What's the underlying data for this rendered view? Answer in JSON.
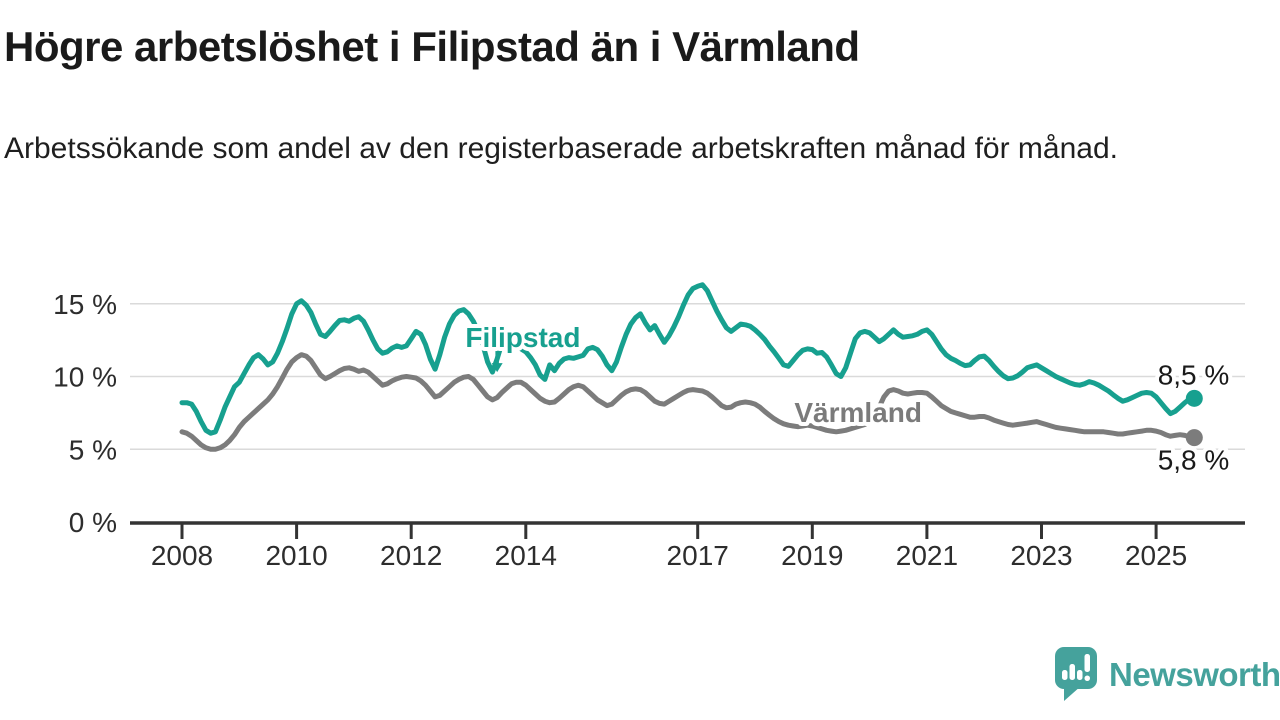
{
  "title": "Högre arbetslöshet i Filipstad än i Värmland",
  "subtitle": "Arbetssökande som andel av den registerbaserade arbetskraften månad för månad.",
  "colors": {
    "filipstad": "#17a08f",
    "varmland": "#7c7c7c",
    "grid": "#dadada",
    "axis": "#333333",
    "axis_text": "#2d2d2d",
    "label_text": "#1a1a1a",
    "logo": "#45a29c",
    "background": "#ffffff"
  },
  "chart_data": {
    "type": "line",
    "x_axis": {
      "start": "2008-01",
      "end": "2025-09",
      "interval": "monthly"
    },
    "x_ticks": [
      {
        "year": 2008,
        "label": "2008"
      },
      {
        "year": 2010,
        "label": "2010"
      },
      {
        "year": 2012,
        "label": "2012"
      },
      {
        "year": 2014,
        "label": "2014"
      },
      {
        "year": 2017,
        "label": "2017"
      },
      {
        "year": 2019,
        "label": "2019"
      },
      {
        "year": 2021,
        "label": "2021"
      },
      {
        "year": 2023,
        "label": "2023"
      },
      {
        "year": 2025,
        "label": "2025"
      }
    ],
    "y_ticks": [
      {
        "value": 0,
        "label": "0 %"
      },
      {
        "value": 5,
        "label": "5 %"
      },
      {
        "value": 10,
        "label": "10 %"
      },
      {
        "value": 15,
        "label": "15 %"
      }
    ],
    "ylim": [
      0,
      17.5
    ],
    "grid": true,
    "series": [
      {
        "name": "Värmland",
        "color": "#7c7c7c",
        "end_label": "5,8 %",
        "values": [
          6.2,
          6.1,
          5.9,
          5.6,
          5.3,
          5.1,
          5.0,
          5.0,
          5.1,
          5.3,
          5.6,
          6.0,
          6.5,
          6.9,
          7.2,
          7.5,
          7.8,
          8.1,
          8.4,
          8.8,
          9.3,
          9.9,
          10.5,
          11.0,
          11.3,
          11.5,
          11.4,
          11.1,
          10.6,
          10.1,
          9.85,
          10.0,
          10.2,
          10.4,
          10.55,
          10.6,
          10.5,
          10.35,
          10.45,
          10.3,
          10.0,
          9.7,
          9.4,
          9.5,
          9.7,
          9.85,
          9.95,
          10.0,
          9.95,
          9.9,
          9.7,
          9.4,
          9.0,
          8.6,
          8.7,
          9.0,
          9.3,
          9.6,
          9.8,
          9.95,
          10.0,
          9.8,
          9.4,
          9.0,
          8.6,
          8.4,
          8.55,
          8.9,
          9.2,
          9.5,
          9.6,
          9.6,
          9.4,
          9.1,
          8.8,
          8.5,
          8.3,
          8.2,
          8.25,
          8.5,
          8.8,
          9.1,
          9.3,
          9.4,
          9.3,
          9.0,
          8.7,
          8.4,
          8.2,
          8.0,
          8.1,
          8.4,
          8.7,
          8.95,
          9.1,
          9.15,
          9.1,
          8.9,
          8.6,
          8.3,
          8.15,
          8.1,
          8.3,
          8.5,
          8.7,
          8.9,
          9.05,
          9.1,
          9.05,
          9.0,
          8.85,
          8.6,
          8.3,
          8.0,
          7.85,
          7.9,
          8.1,
          8.2,
          8.25,
          8.2,
          8.1,
          7.9,
          7.6,
          7.35,
          7.1,
          6.9,
          6.75,
          6.65,
          6.6,
          6.55,
          6.6,
          6.65,
          6.6,
          6.5,
          6.4,
          6.3,
          6.25,
          6.2,
          6.25,
          6.3,
          6.4,
          6.5,
          6.6,
          6.7,
          6.9,
          7.2,
          7.9,
          8.6,
          9.0,
          9.1,
          9.0,
          8.85,
          8.8,
          8.85,
          8.9,
          8.9,
          8.85,
          8.6,
          8.3,
          8.0,
          7.8,
          7.6,
          7.5,
          7.4,
          7.3,
          7.2,
          7.2,
          7.25,
          7.25,
          7.15,
          7.0,
          6.9,
          6.8,
          6.7,
          6.65,
          6.7,
          6.75,
          6.8,
          6.85,
          6.9,
          6.8,
          6.7,
          6.6,
          6.5,
          6.45,
          6.4,
          6.35,
          6.3,
          6.25,
          6.2,
          6.2,
          6.2,
          6.2,
          6.2,
          6.15,
          6.1,
          6.05,
          6.05,
          6.1,
          6.15,
          6.2,
          6.25,
          6.3,
          6.3,
          6.25,
          6.15,
          6.0,
          5.9,
          5.95,
          6.0,
          5.95,
          5.85,
          5.8
        ]
      },
      {
        "name": "Filipstad",
        "color": "#17a08f",
        "end_label": "8,5 %",
        "values": [
          8.2,
          8.2,
          8.1,
          7.6,
          6.9,
          6.3,
          6.1,
          6.2,
          7.0,
          7.9,
          8.6,
          9.3,
          9.6,
          10.2,
          10.8,
          11.3,
          11.5,
          11.2,
          10.8,
          11.0,
          11.6,
          12.4,
          13.3,
          14.3,
          15.0,
          15.2,
          14.9,
          14.4,
          13.6,
          12.9,
          12.75,
          13.1,
          13.5,
          13.85,
          13.9,
          13.8,
          14.0,
          14.1,
          13.8,
          13.2,
          12.5,
          11.9,
          11.6,
          11.7,
          11.95,
          12.1,
          12.0,
          12.1,
          12.6,
          13.1,
          12.9,
          12.2,
          11.2,
          10.5,
          11.5,
          12.7,
          13.6,
          14.2,
          14.5,
          14.6,
          14.3,
          13.8,
          13.1,
          12.2,
          11.0,
          10.3,
          11.2,
          12.3,
          12.4,
          12.3,
          12.2,
          11.9,
          11.7,
          11.3,
          10.8,
          10.1,
          9.8,
          10.8,
          10.4,
          10.9,
          11.2,
          11.3,
          11.25,
          11.35,
          11.45,
          11.9,
          12.0,
          11.85,
          11.4,
          10.8,
          10.4,
          11.0,
          12.0,
          12.9,
          13.6,
          14.05,
          14.3,
          13.7,
          13.2,
          13.5,
          12.9,
          12.35,
          12.8,
          13.4,
          14.1,
          14.9,
          15.6,
          16.05,
          16.2,
          16.3,
          15.9,
          15.2,
          14.5,
          13.9,
          13.35,
          13.1,
          13.35,
          13.6,
          13.55,
          13.45,
          13.2,
          12.9,
          12.55,
          12.1,
          11.7,
          11.25,
          10.8,
          10.7,
          11.1,
          11.5,
          11.8,
          11.9,
          11.85,
          11.6,
          11.65,
          11.35,
          10.8,
          10.2,
          10.0,
          10.6,
          11.6,
          12.6,
          13.0,
          13.1,
          13.0,
          12.7,
          12.4,
          12.6,
          12.9,
          13.2,
          12.9,
          12.7,
          12.75,
          12.8,
          12.9,
          13.1,
          13.2,
          12.9,
          12.4,
          11.9,
          11.5,
          11.25,
          11.1,
          10.9,
          10.75,
          10.8,
          11.1,
          11.35,
          11.4,
          11.1,
          10.7,
          10.35,
          10.05,
          9.85,
          9.9,
          10.05,
          10.3,
          10.6,
          10.7,
          10.8,
          10.6,
          10.4,
          10.2,
          10.0,
          9.85,
          9.7,
          9.55,
          9.45,
          9.4,
          9.5,
          9.65,
          9.55,
          9.4,
          9.2,
          9.0,
          8.75,
          8.5,
          8.3,
          8.4,
          8.55,
          8.7,
          8.85,
          8.9,
          8.85,
          8.6,
          8.2,
          7.8,
          7.45,
          7.6,
          7.9,
          8.2,
          8.45,
          8.5
        ]
      }
    ],
    "annotations": [
      {
        "id": "filipstad-label",
        "text": "Filipstad",
        "year": 2013.95,
        "pct": 12.7,
        "color": "#17a08f",
        "arrow": {
          "year": 2013.5,
          "pct_from": 11.75,
          "pct_to": 10.3
        }
      },
      {
        "id": "varmland-label",
        "text": "Värmland",
        "year": 2019.8,
        "pct": 7.55,
        "color": "#7b7b7b"
      }
    ],
    "legend_position": "inline-annotations"
  },
  "logo": {
    "name": "Newsworthy",
    "icon": "speech-bubble-bar-chart"
  }
}
